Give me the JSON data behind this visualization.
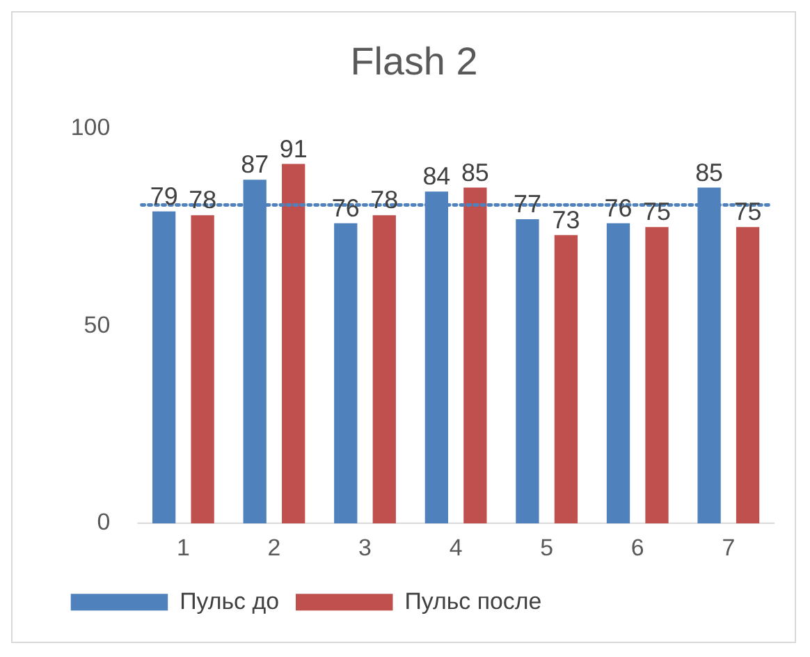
{
  "chart_data": {
    "type": "bar",
    "title": "Flash 2",
    "categories": [
      "1",
      "2",
      "3",
      "4",
      "5",
      "6",
      "7"
    ],
    "series": [
      {
        "name": "Пульс до",
        "color": "#4f81bd",
        "values": [
          79,
          87,
          76,
          84,
          77,
          76,
          85
        ]
      },
      {
        "name": "Пульс после",
        "color": "#c0504d",
        "values": [
          78,
          91,
          78,
          85,
          73,
          75,
          75
        ]
      }
    ],
    "ylim": [
      0,
      100
    ],
    "yticks": [
      0,
      50,
      100
    ],
    "grid": false,
    "legend": "bottom",
    "data_labels": true,
    "ref_lines": [
      {
        "axis": "y",
        "value": 80.6,
        "color": "#4f81bd",
        "line_style": "dotted"
      }
    ]
  }
}
